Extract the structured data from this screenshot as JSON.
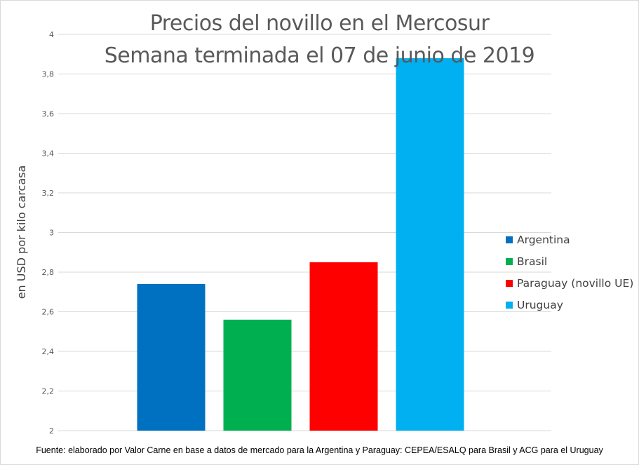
{
  "chart_data": {
    "type": "bar",
    "title": "Precios del novillo en el Mercosur",
    "subtitle": "Semana terminada el 07 de junio de 2019",
    "xlabel": "",
    "ylabel": "en USD por kilo carcasa",
    "ylim": [
      2,
      4
    ],
    "yticks": [
      2,
      2.2,
      2.4,
      2.6,
      2.8,
      3,
      3.2,
      3.4,
      3.6,
      3.8,
      4
    ],
    "ytick_labels": [
      "2",
      "2,2",
      "2,4",
      "2,6",
      "2,8",
      "3",
      "3,2",
      "3,4",
      "3,6",
      "3,8",
      "4"
    ],
    "grid": true,
    "legend_position": "right",
    "categories": [
      "Argentina",
      "Brasil",
      "Paraguay (novillo UE)",
      "Uruguay"
    ],
    "values": [
      2.74,
      2.56,
      2.85,
      3.88
    ],
    "colors": [
      "#0070c0",
      "#00b050",
      "#ff0000",
      "#00b0f0"
    ]
  },
  "footer": "Fuente: elaborado por Valor Carne en base a datos de mercado para la Argentina y Paraguay: CEPEA/ESALQ para Brasil y ACG para el Uruguay"
}
